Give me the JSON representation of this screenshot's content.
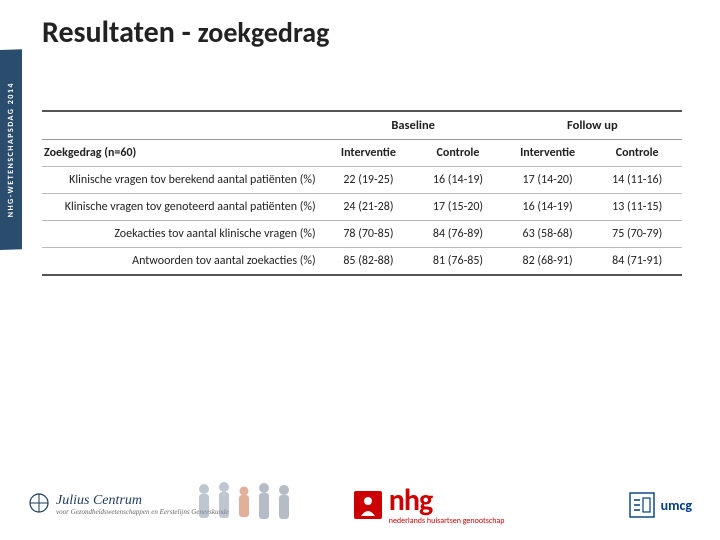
{
  "sideTab": "NHG-WETENSCHAPSDAG 2014",
  "title": {
    "main": "Resultaten - ",
    "sub": "zoekgedrag"
  },
  "table": {
    "groupHeaders": [
      "",
      "Baseline",
      "Follow up"
    ],
    "subHeaders": [
      "Zoekgedrag (n=60)",
      "Interventie",
      "Controle",
      "Interventie",
      "Controle"
    ],
    "rows": [
      {
        "label": "Klinische vragen tov berekend aantal patiënten (%)",
        "cells": [
          "22 (19-25)",
          "16 (14-19)",
          "17 (14-20)",
          "14 (11-16)"
        ]
      },
      {
        "label": "Klinische vragen tov genoteerd aantal patiënten (%)",
        "cells": [
          "24 (21-28)",
          "17 (15-20)",
          "16 (14-19)",
          "13 (11-15)"
        ]
      },
      {
        "label": "Zoekacties tov aantal klinische vragen (%)",
        "cells": [
          "78 (70-85)",
          "84 (76-89)",
          "63 (58-68)",
          "75 (70-79)"
        ]
      },
      {
        "label": "Antwoorden tov aantal zoekacties (%)",
        "cells": [
          "85 (82-88)",
          "81 (76-85)",
          "82 (68-91)",
          "84 (71-91)"
        ]
      }
    ],
    "col_widths": [
      "44%",
      "14%",
      "14%",
      "14%",
      "14%"
    ],
    "border_color": "#bbbbbb",
    "header_border_color": "#555555"
  },
  "logos": {
    "julius": {
      "name": "Julius Centrum",
      "tag": "voor Gezondheidswetenschappen en Eerstelijns Geneeskunde"
    },
    "nhg": {
      "name": "nhg",
      "tag": "nederlands huisartsen genootschap"
    },
    "umcg": {
      "name": "umcg"
    }
  },
  "styling": {
    "title_color": "#222222",
    "title_fontsize_main": 30,
    "title_fontsize_sub": 28,
    "body_fontsize": 12,
    "background_color": "#ffffff",
    "sidetab_bg": "#2a4d6e",
    "sidetab_text": "#ffffff",
    "accent_red": "#cc0000",
    "accent_blue": "#003f7f"
  }
}
